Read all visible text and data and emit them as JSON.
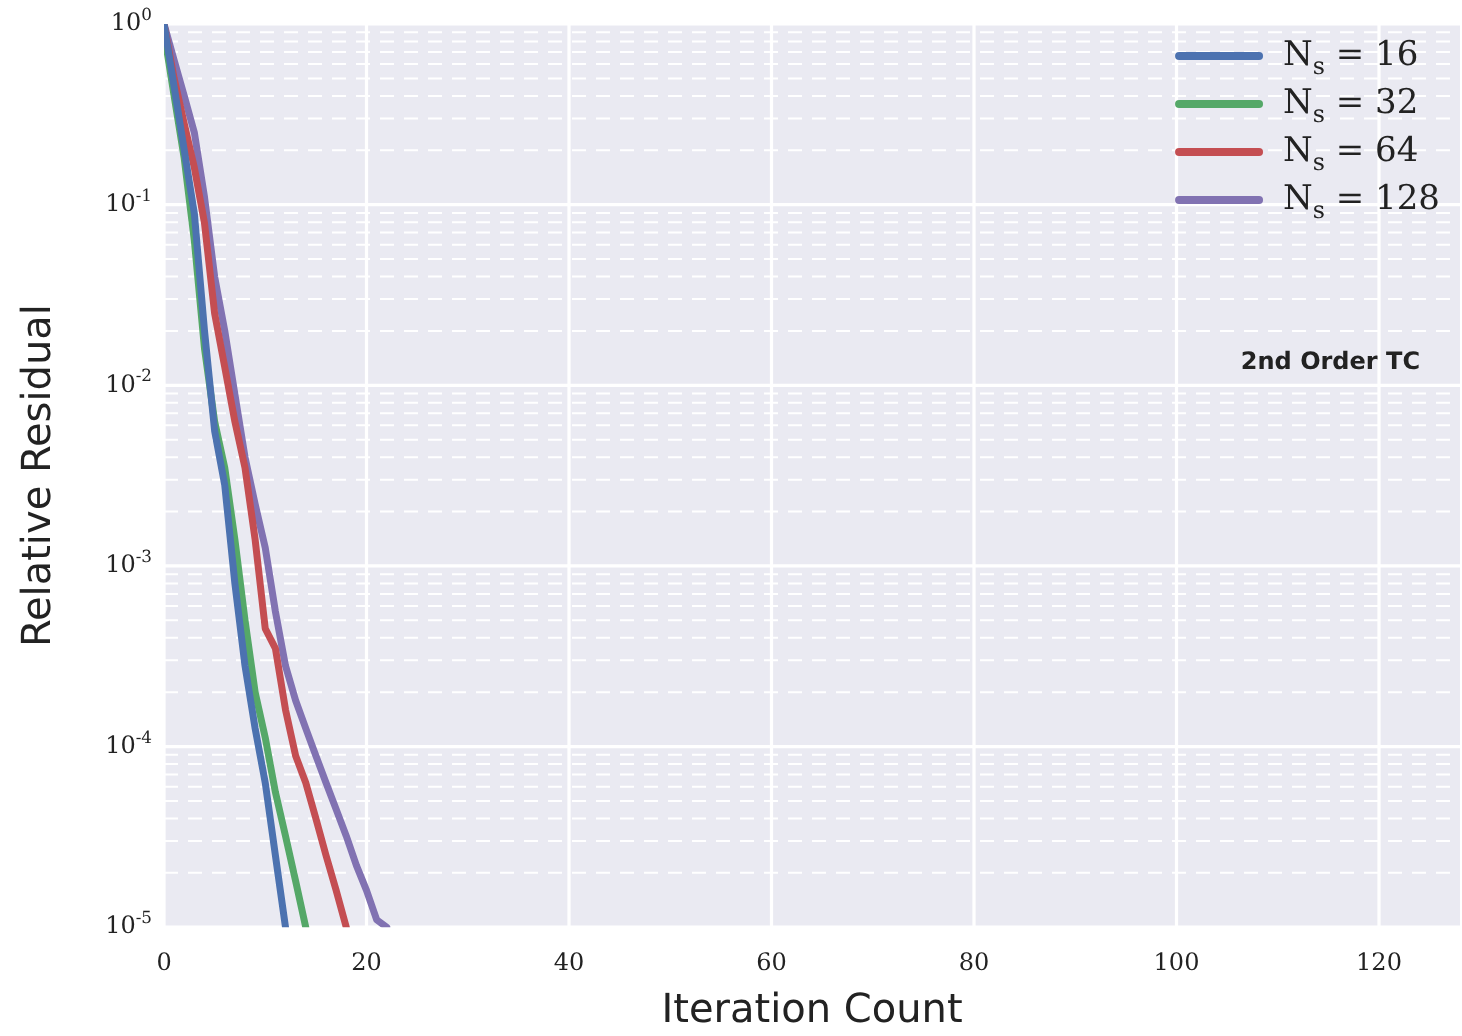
{
  "chart_data": {
    "type": "line",
    "xlabel": "Iteration Count",
    "ylabel": "Relative Residual",
    "x": [
      0,
      1,
      2,
      3,
      4,
      5,
      6,
      7,
      8,
      9,
      10,
      11,
      12,
      13,
      14,
      15,
      16,
      17,
      18,
      19,
      20,
      21,
      22
    ],
    "series": [
      {
        "name": "N$_{s}$ = 16",
        "color": "#4c72b0",
        "values": [
          1,
          0.45,
          0.2,
          0.089,
          0.02,
          0.0056,
          0.0028,
          0.0008,
          0.00028,
          0.000126,
          6.3e-05,
          2.5e-05,
          1e-05,
          null,
          null,
          null,
          null,
          null,
          null,
          null,
          null,
          null,
          null
        ]
      },
      {
        "name": "N$_{s}$ = 32",
        "color": "#55a868",
        "values": [
          0.9,
          0.4,
          0.18,
          0.063,
          0.016,
          0.0063,
          0.0035,
          0.0014,
          0.0005,
          0.0002,
          0.000112,
          5.6e-05,
          3.2e-05,
          1.8e-05,
          1e-05,
          null,
          null,
          null,
          null,
          null,
          null,
          null,
          null
        ]
      },
      {
        "name": "N$_{s}$ = 64",
        "color": "#c44e52",
        "values": [
          1,
          0.5,
          0.28,
          0.16,
          0.079,
          0.025,
          0.0126,
          0.0063,
          0.0035,
          0.0014,
          0.00045,
          0.00035,
          0.00016,
          8.9e-05,
          6.3e-05,
          4e-05,
          2.5e-05,
          1.6e-05,
          1e-05,
          null,
          null,
          null,
          null
        ]
      },
      {
        "name": "N$_{s}$ = 128",
        "color": "#8172b2",
        "values": [
          1,
          0.63,
          0.4,
          0.25,
          0.11,
          0.04,
          0.02,
          0.0089,
          0.004,
          0.0022,
          0.00126,
          0.00056,
          0.00028,
          0.00018,
          0.000126,
          8.9e-05,
          6.3e-05,
          4.5e-05,
          3.2e-05,
          2.2e-05,
          1.6e-05,
          1.1e-05,
          1e-05
        ]
      }
    ],
    "xlim": [
      0,
      128
    ],
    "xticks": [
      0,
      20,
      40,
      60,
      80,
      100,
      120
    ],
    "ylim": [
      1e-05,
      1
    ],
    "yticks": [
      {
        "value": 1e-05,
        "label": "10$^{-5}$"
      },
      {
        "value": 2e-05,
        "label": null
      },
      {
        "value": 3e-05,
        "label": null
      },
      {
        "value": 4e-05,
        "label": null
      },
      {
        "value": 5e-05,
        "label": null
      },
      {
        "value": 6e-05,
        "label": null
      },
      {
        "value": 7e-05,
        "label": null
      },
      {
        "value": 8e-05,
        "label": null
      },
      {
        "value": 9e-05,
        "label": null
      },
      {
        "value": 0.0001,
        "label": "10$^{-4}$"
      },
      {
        "value": 0.0002,
        "label": null
      },
      {
        "value": 0.0003,
        "label": null
      },
      {
        "value": 0.0004,
        "label": null
      },
      {
        "value": 0.0005,
        "label": null
      },
      {
        "value": 0.0006,
        "label": null
      },
      {
        "value": 0.0007,
        "label": null
      },
      {
        "value": 0.0008,
        "label": null
      },
      {
        "value": 0.0009,
        "label": null
      },
      {
        "value": 0.001,
        "label": "10$^{-3}$"
      },
      {
        "value": 0.002,
        "label": null
      },
      {
        "value": 0.003,
        "label": null
      },
      {
        "value": 0.004,
        "label": null
      },
      {
        "value": 0.005,
        "label": null
      },
      {
        "value": 0.006,
        "label": null
      },
      {
        "value": 0.007,
        "label": null
      },
      {
        "value": 0.008,
        "label": null
      },
      {
        "value": 0.009,
        "label": null
      },
      {
        "value": 0.01,
        "label": "10$^{-2}$"
      },
      {
        "value": 0.02,
        "label": null
      },
      {
        "value": 0.03,
        "label": null
      },
      {
        "value": 0.04,
        "label": null
      },
      {
        "value": 0.05,
        "label": null
      },
      {
        "value": 0.06,
        "label": null
      },
      {
        "value": 0.07,
        "label": null
      },
      {
        "value": 0.08,
        "label": null
      },
      {
        "value": 0.09,
        "label": null
      },
      {
        "value": 0.1,
        "label": "10$^{-1}$"
      },
      {
        "value": 0.2,
        "label": null
      },
      {
        "value": 0.3,
        "label": null
      },
      {
        "value": 0.4,
        "label": null
      },
      {
        "value": 0.5,
        "label": null
      },
      {
        "value": 0.6,
        "label": null
      },
      {
        "value": 0.7,
        "label": null
      },
      {
        "value": 0.8,
        "label": null
      },
      {
        "value": 0.9,
        "label": null
      },
      {
        "value": 1,
        "label": "10$^{0}$"
      }
    ],
    "log": "y",
    "grid": true,
    "legend": "top right",
    "marker": "none",
    "line_style": "solid",
    "annotations": [
      "2nd Order TC"
    ]
  }
}
